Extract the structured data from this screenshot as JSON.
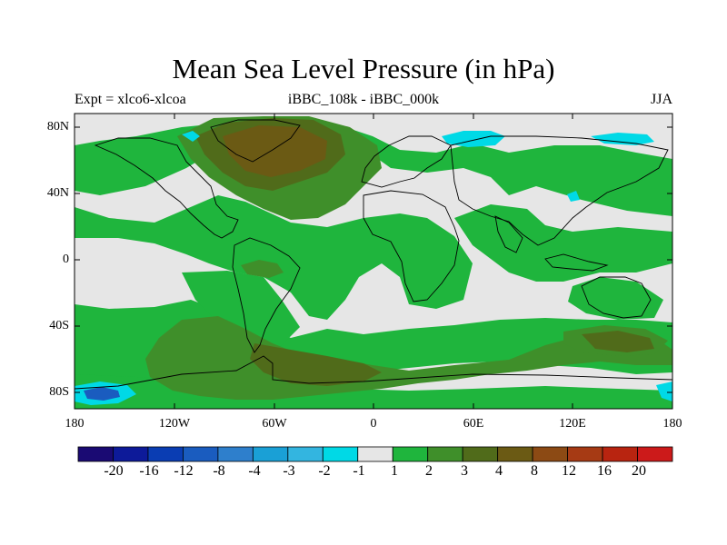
{
  "title": "Mean Sea Level Pressure (in hPa)",
  "subtitle_left": "Expt = xlco6-xlcoa",
  "subtitle_center": "iBBC_108k - iBBC_000k",
  "subtitle_right": "JJA",
  "lat_labels": [
    "80N",
    "40N",
    "0",
    "40S",
    "80S"
  ],
  "lon_labels": [
    "180",
    "120W",
    "60W",
    "0",
    "60E",
    "120E",
    "180"
  ],
  "colorbar": {
    "labels": [
      "-20",
      "-16",
      "-12",
      "-8",
      "-4",
      "-3",
      "-2",
      "-1",
      "1",
      "2",
      "3",
      "4",
      "8",
      "12",
      "16",
      "20"
    ],
    "colors": [
      "#1a0a73",
      "#0d1a99",
      "#0a3db3",
      "#1a5cbf",
      "#2e7fcc",
      "#1aa0d6",
      "#33b5e0",
      "#00d9e6",
      "#e6e6e6",
      "#1fb53d",
      "#3f8f2a",
      "#506b1a",
      "#6b5a14",
      "#8c4a14",
      "#a63a14",
      "#b82410",
      "#cc1a1a"
    ]
  },
  "map_colors": {
    "neutral": "#e6e6e6",
    "green": "#1fb53d",
    "olive": "#3f8f2a",
    "dark_olive": "#506b1a",
    "brown": "#6b5a14",
    "cyan": "#00d9e6",
    "blue": "#1a5cbf"
  }
}
